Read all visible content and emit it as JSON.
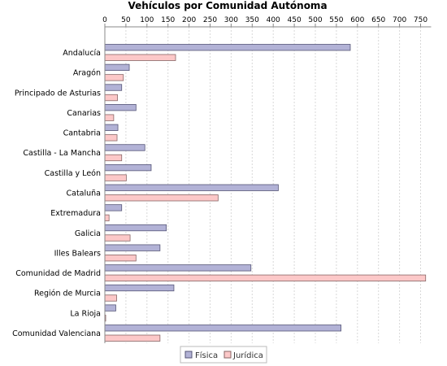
{
  "chart_data": {
    "type": "bar",
    "orientation": "horizontal",
    "title": "Vehículos por Comunidad Autónoma",
    "xlabel": "",
    "ylabel": "",
    "xlim": [
      0,
      775
    ],
    "xticks": [
      0,
      50,
      100,
      150,
      200,
      250,
      300,
      350,
      400,
      450,
      500,
      550,
      600,
      650,
      700,
      750
    ],
    "tick_position": "top",
    "grid": "vertical-dashed",
    "legend_position": "bottom-center",
    "categories": [
      "Andalucía",
      "Aragón",
      "Principado de Asturias",
      "Canarias",
      "Cantabria",
      "Castilla - La Mancha",
      "Castilla y León",
      "Cataluña",
      "Extremadura",
      "Galicia",
      "Illes Balears",
      "Comunidad de Madrid",
      "Región de Murcia",
      "La Rioja",
      "Comunidad Valenciana"
    ],
    "series": [
      {
        "name": "Física",
        "color": "#b2b2d6",
        "stroke": "#555577",
        "values": [
          583,
          58,
          40,
          74,
          31,
          95,
          110,
          412,
          40,
          146,
          131,
          347,
          164,
          26,
          561
        ]
      },
      {
        "name": "Jurídica",
        "color": "#fcc8c8",
        "stroke": "#886666",
        "values": [
          168,
          44,
          30,
          21,
          29,
          40,
          51,
          269,
          10,
          60,
          74,
          762,
          28,
          2,
          131
        ]
      }
    ]
  }
}
